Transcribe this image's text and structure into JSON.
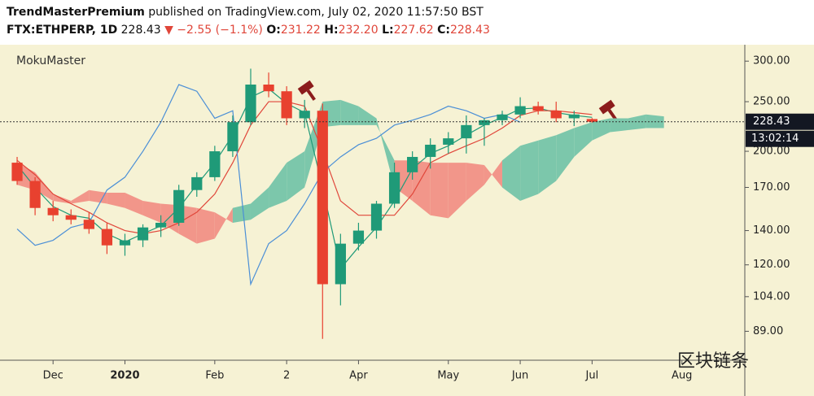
{
  "header": {
    "author": "TrendMasterPremium",
    "published": "published on TradingView.com, July 02, 2020 11:57:50 BST",
    "symbol": "FTX:ETHPERP, 1D",
    "price": "228.43",
    "change": "▼ −2.55 (−1.1%)",
    "ohlc": [
      {
        "k": "O:",
        "v": "231.22"
      },
      {
        "k": "H:",
        "v": "232.20"
      },
      {
        "k": "L:",
        "v": "227.62"
      },
      {
        "k": "C:",
        "v": "228.43"
      }
    ]
  },
  "chart_data": {
    "type": "candlestick",
    "indicator": "MokuMaster",
    "log_scale": true,
    "categories": [
      null,
      null,
      "Dec",
      null,
      null,
      null,
      "2020",
      null,
      null,
      null,
      null,
      "Feb",
      null,
      null,
      null,
      "2",
      null,
      null,
      null,
      "Apr",
      null,
      null,
      null,
      null,
      "May",
      null,
      null,
      null,
      "Jun",
      null,
      null,
      null,
      "Jul",
      null,
      null,
      null,
      null,
      "Aug",
      null,
      null,
      null
    ],
    "ohlc": [
      [
        190,
        195,
        172,
        175
      ],
      [
        175,
        178,
        150,
        155
      ],
      [
        155,
        160,
        146,
        150
      ],
      [
        150,
        154,
        144,
        147
      ],
      [
        147,
        152,
        138,
        141
      ],
      [
        141,
        145,
        126,
        131
      ],
      [
        131,
        138,
        125,
        134
      ],
      [
        134,
        144,
        130,
        142
      ],
      [
        142,
        150,
        136,
        145
      ],
      [
        145,
        172,
        143,
        168
      ],
      [
        168,
        182,
        163,
        178
      ],
      [
        178,
        205,
        175,
        200
      ],
      [
        200,
        235,
        195,
        228
      ],
      [
        228,
        290,
        225,
        270
      ],
      [
        270,
        285,
        255,
        262
      ],
      [
        262,
        268,
        225,
        232
      ],
      [
        232,
        252,
        222,
        240
      ],
      [
        240,
        248,
        86,
        110
      ],
      [
        110,
        138,
        100,
        132
      ],
      [
        132,
        145,
        128,
        140
      ],
      [
        140,
        160,
        135,
        158
      ],
      [
        158,
        190,
        155,
        182
      ],
      [
        182,
        200,
        176,
        195
      ],
      [
        195,
        212,
        185,
        206
      ],
      [
        206,
        218,
        198,
        212
      ],
      [
        212,
        235,
        198,
        225
      ],
      [
        225,
        232,
        205,
        230
      ],
      [
        230,
        240,
        225,
        236
      ],
      [
        236,
        255,
        232,
        245
      ],
      [
        245,
        250,
        236,
        240
      ],
      [
        240,
        250,
        228,
        232
      ],
      [
        232,
        240,
        224,
        236
      ],
      [
        231.22,
        232.2,
        227.62,
        228.43
      ],
      null,
      null,
      null,
      null,
      null,
      null,
      null,
      null
    ],
    "up_color": "#1f9a78",
    "down_color": "#e8412f",
    "lines": [
      {
        "color": "#1f9a78",
        "values": [
          188,
          170,
          156,
          150,
          148,
          138,
          133,
          138,
          143,
          155,
          172,
          190,
          215,
          255,
          265,
          248,
          238,
          170,
          118,
          130,
          142,
          160,
          185,
          198,
          205,
          215,
          225,
          233,
          242,
          243,
          238,
          235,
          233,
          null,
          null,
          null,
          null,
          null,
          null,
          null,
          null
        ]
      },
      {
        "color": "#e0463a",
        "values": [
          192,
          180,
          165,
          158,
          152,
          145,
          140,
          138,
          140,
          145,
          152,
          165,
          190,
          225,
          250,
          250,
          245,
          200,
          160,
          150,
          150,
          150,
          165,
          190,
          198,
          205,
          212,
          222,
          235,
          240,
          240,
          238,
          236,
          null,
          null,
          null,
          null,
          null,
          null,
          null,
          null
        ]
      },
      {
        "color": "#4b8fd6",
        "values": [
          141,
          131,
          134,
          142,
          145,
          168,
          178,
          200,
          228,
          270,
          262,
          232,
          240,
          110,
          132,
          140,
          158,
          182,
          195,
          206,
          212,
          225,
          230,
          236,
          245,
          240,
          232,
          236,
          228,
          null,
          null,
          null,
          null,
          null,
          null,
          null,
          null,
          null,
          null,
          null,
          null
        ]
      }
    ],
    "span_a": [
      172,
      168,
      160,
      158,
      160,
      158,
      155,
      150,
      145,
      138,
      132,
      135,
      155,
      158,
      170,
      190,
      200,
      250,
      252,
      245,
      232,
      170,
      160,
      150,
      148,
      160,
      172,
      192,
      205,
      210,
      215,
      222,
      228,
      232,
      232,
      236,
      234,
      null,
      null,
      null,
      null
    ],
    "span_b": [
      190,
      182,
      165,
      160,
      168,
      166,
      166,
      160,
      158,
      157,
      155,
      152,
      145,
      147,
      155,
      160,
      170,
      223,
      225,
      225,
      225,
      192,
      192,
      190,
      190,
      190,
      188,
      170,
      160,
      165,
      175,
      195,
      210,
      218,
      220,
      222,
      222,
      null,
      null,
      null,
      null
    ],
    "cloud_up_color": "#7cc7ab",
    "cloud_down_color": "#f2968a",
    "ylim": [
      79,
      323
    ],
    "yticks": [
      {
        "value": 300,
        "label": "300.00"
      },
      {
        "value": 250,
        "label": "250.00"
      },
      {
        "value": 200,
        "label": "200.00"
      },
      {
        "value": 170,
        "label": "170.00"
      },
      {
        "value": 140,
        "label": "140.00"
      },
      {
        "value": 120,
        "label": "120.00"
      },
      {
        "value": 104,
        "label": "104.00"
      },
      {
        "value": 89,
        "label": "89.00"
      }
    ],
    "last_price": 228.43,
    "countdown": "13:02:14",
    "watermark": "区块链条"
  }
}
